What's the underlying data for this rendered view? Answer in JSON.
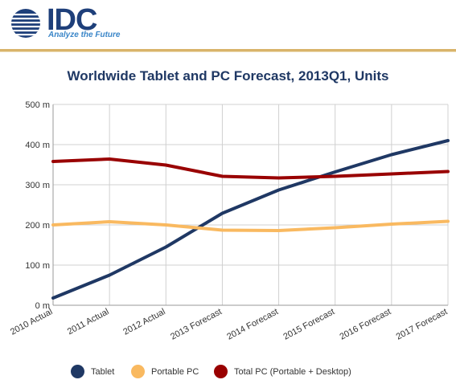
{
  "brand": {
    "logo_text": "IDC",
    "tagline": "Analyze the Future"
  },
  "colors": {
    "tablet": "#1f3864",
    "portable_pc": "#f9b960",
    "total_pc": "#990000",
    "grid": "#d0d0d0",
    "header_rule": "#d9b46a"
  },
  "chart_data": {
    "type": "line",
    "title": "Worldwide Tablet and PC Forecast, 2013Q1, Units",
    "xlabel": "",
    "ylabel": "",
    "ylim": [
      0,
      500
    ],
    "y_ticks": [
      {
        "value": 0,
        "label": "0 m"
      },
      {
        "value": 100,
        "label": "100 m"
      },
      {
        "value": 200,
        "label": "200 m"
      },
      {
        "value": 300,
        "label": "300 m"
      },
      {
        "value": 400,
        "label": "400 m"
      },
      {
        "value": 500,
        "label": "500 m"
      }
    ],
    "categories": [
      "2010 Actual",
      "2011 Actual",
      "2012 Actual",
      "2013 Forecast",
      "2014 Forecast",
      "2015 Forecast",
      "2016 Forecast",
      "2017 Forecast"
    ],
    "grid": true,
    "legend_position": "bottom",
    "series": [
      {
        "name": "Tablet",
        "color": "#1f3864",
        "values": [
          18,
          75,
          145,
          229,
          287,
          332,
          375,
          410
        ]
      },
      {
        "name": "Portable PC",
        "color": "#f9b960",
        "values": [
          200,
          208,
          200,
          187,
          186,
          193,
          202,
          209
        ]
      },
      {
        "name": "Total PC (Portable + Desktop)",
        "color": "#990000",
        "values": [
          358,
          364,
          349,
          321,
          317,
          321,
          327,
          333
        ]
      }
    ]
  }
}
